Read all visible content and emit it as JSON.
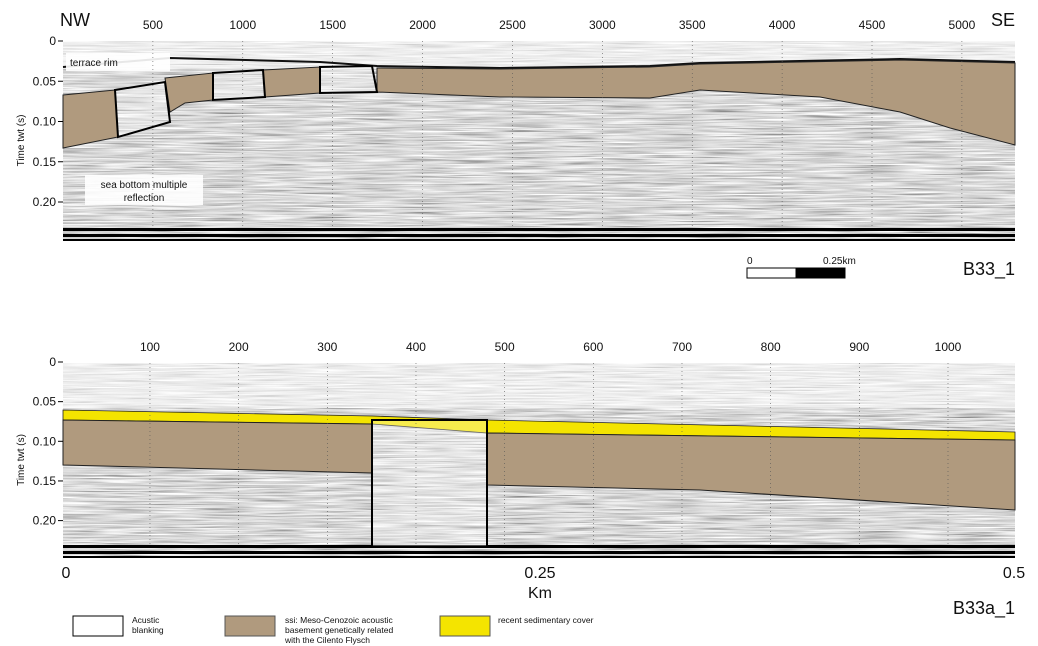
{
  "panels": [
    {
      "left_label": "NW",
      "right_label": "SE",
      "id_label": "B33_1",
      "top_ticks": [
        "500",
        "1000",
        "1500",
        "2000",
        "2500",
        "3000",
        "3500",
        "4000",
        "4500",
        "5000"
      ],
      "y_axis_title": "Time twt (s)",
      "y_ticks": [
        "0",
        "0.05",
        "0.10",
        "0.15",
        "0.20"
      ],
      "annotations": [
        [
          "terrace rim"
        ],
        [
          "sea bottom multiple",
          "reflection"
        ]
      ],
      "scale_bar": {
        "start": "0",
        "end": "0.25km"
      }
    },
    {
      "id_label": "B33a_1",
      "top_ticks": [
        "100",
        "200",
        "300",
        "400",
        "500",
        "600",
        "700",
        "800",
        "900",
        "1000"
      ],
      "y_axis_title": "Time twt (s)",
      "y_ticks": [
        "0",
        "0.05",
        "0.10",
        "0.15",
        "0.20"
      ],
      "bottom_ticks": [
        "0",
        "0.25",
        "0.5"
      ],
      "x_axis_title": "Km"
    }
  ],
  "legend": [
    {
      "label": [
        "Acustic",
        "blanking"
      ]
    },
    {
      "label": [
        "ssi: Meso-Cenozoic acoustic",
        "basement genetically related",
        "with the Cilento Flysch"
      ]
    },
    {
      "label": [
        "recent sedimentary cover"
      ]
    }
  ]
}
